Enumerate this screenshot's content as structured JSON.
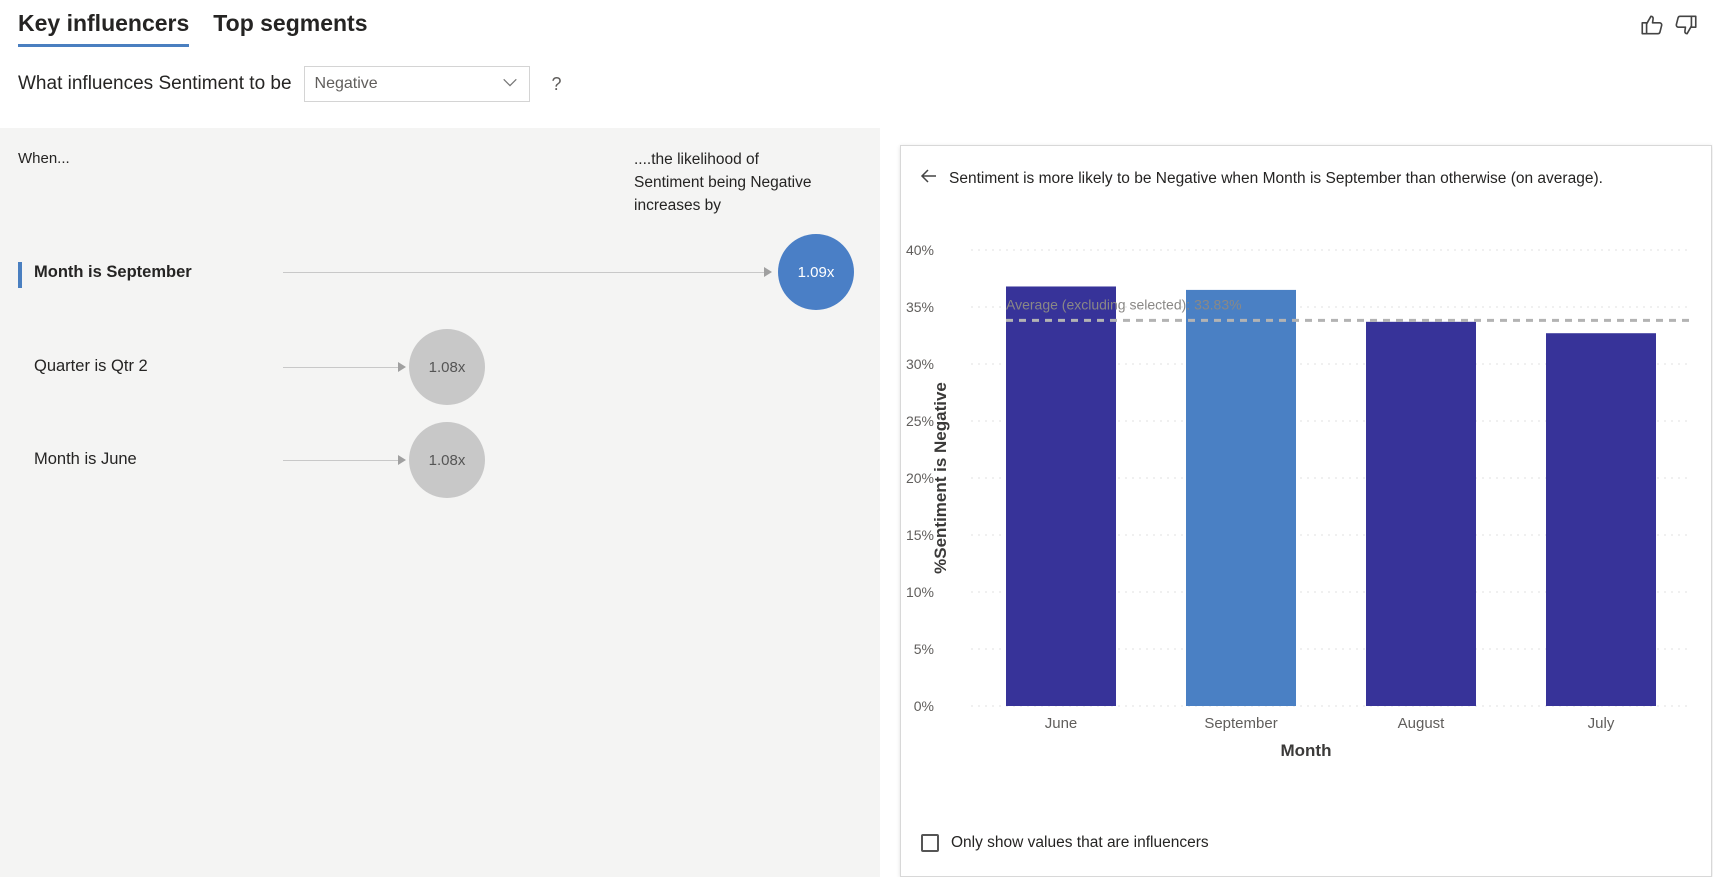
{
  "tabs": [
    {
      "label": "Key influencers",
      "active": true
    },
    {
      "label": "Top segments",
      "active": false
    }
  ],
  "feedback": {
    "like_icon": "thumbs-up-icon",
    "dislike_icon": "thumbs-down-icon"
  },
  "question": {
    "prefix": "What influences Sentiment to be",
    "selected": "Negative",
    "help": "?"
  },
  "influencers": {
    "when_label": "When...",
    "likelihood_label": "....the likelihood of Sentiment being Negative increases by",
    "items": [
      {
        "label": "Month is September",
        "value": "1.09x",
        "selected": true
      },
      {
        "label": "Quarter is Qtr 2",
        "value": "1.08x",
        "selected": false
      },
      {
        "label": "Month is June",
        "value": "1.08x",
        "selected": false
      }
    ]
  },
  "detail": {
    "back_icon": "arrow-left-icon",
    "description": "Sentiment is more likely to be Negative when Month is September than otherwise (on average).",
    "checkbox_label": "Only show values that are influencers"
  },
  "chart_data": {
    "type": "bar",
    "categories": [
      "June",
      "September",
      "August",
      "July"
    ],
    "values": [
      36.8,
      36.5,
      33.7,
      32.7
    ],
    "highlighted": "September",
    "xlabel": "Month",
    "ylabel": "%Sentiment is Negative",
    "ylim": [
      0,
      40
    ],
    "yticks": [
      "0%",
      "5%",
      "10%",
      "15%",
      "20%",
      "25%",
      "30%",
      "35%",
      "40%"
    ],
    "average": {
      "label": "Average (excluding selected): 33.83%",
      "value": 33.83
    },
    "colors": {
      "bar": "#373399",
      "highlight": "#4a80c4",
      "average_line": "#b3b3b3",
      "grid": "#e1e1e1"
    },
    "grid": true
  }
}
